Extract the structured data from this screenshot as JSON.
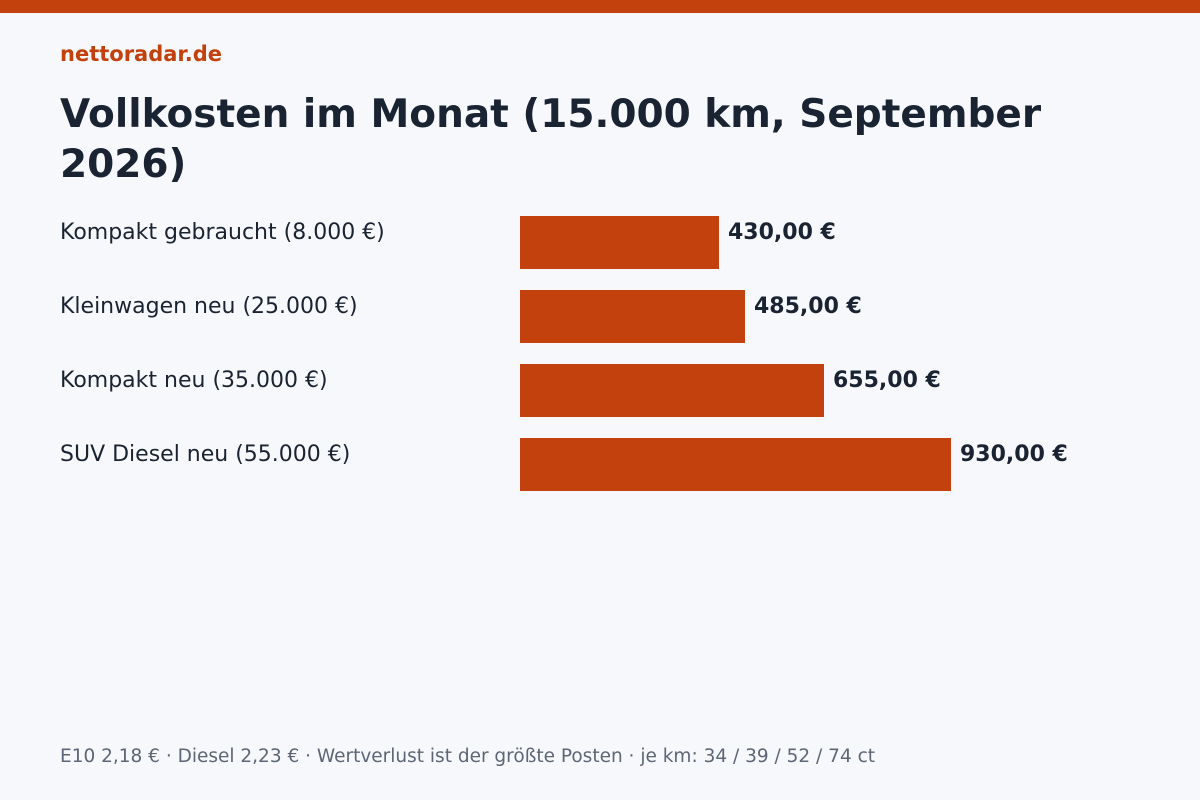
{
  "site": {
    "brand": "nettoradar.de"
  },
  "colors": {
    "accent": "#c2410c",
    "text": "#1a2332",
    "muted": "#5c6676",
    "background": "#f7f8fb"
  },
  "footer": {
    "note": "E10 2,18 € · Diesel 2,23 € · Wertverlust ist der größte Posten · je km: 34 / 39 / 52 / 74 ct"
  },
  "chart_data": {
    "type": "bar",
    "orientation": "horizontal",
    "title": "Vollkosten im Monat (15.000 km, September 2026)",
    "categories": [
      "Kompakt gebraucht (8.000 €)",
      "Kleinwagen neu (25.000 €)",
      "Kompakt neu (35.000 €)",
      "SUV Diesel neu (55.000 €)"
    ],
    "values": [
      430,
      485,
      655,
      930
    ],
    "value_labels": [
      "430,00 €",
      "485,00 €",
      "655,00 €",
      "930,00 €"
    ],
    "unit": "€",
    "xlim": [
      0,
      1000
    ],
    "grid": false
  }
}
